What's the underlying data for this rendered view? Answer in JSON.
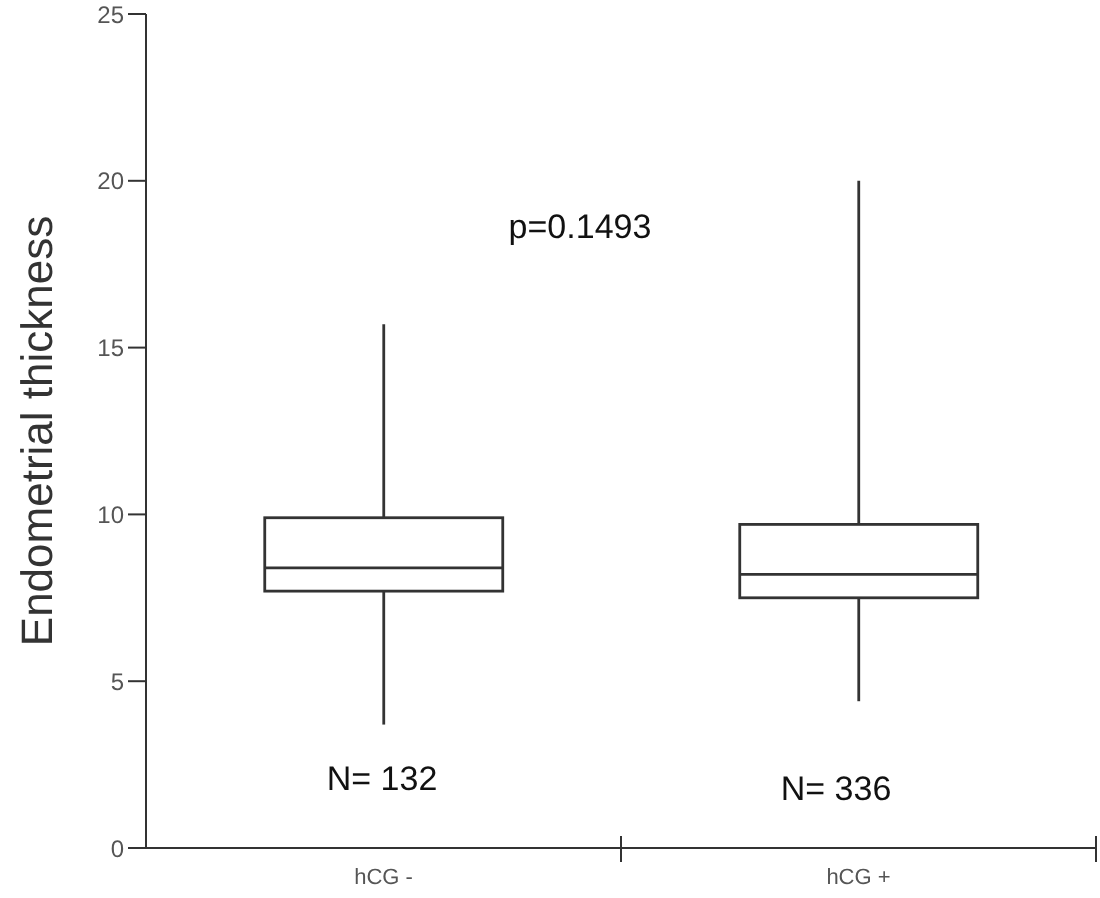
{
  "chart_data": {
    "type": "box",
    "categories": [
      "hCG -",
      "hCG +"
    ],
    "ylabel": "Endometrial thickness",
    "ylim": [
      0,
      25
    ],
    "yticks": [
      0,
      5,
      10,
      15,
      20,
      25
    ],
    "color": "#333333",
    "boxes": [
      {
        "low": 3.7,
        "q1": 7.7,
        "median": 8.4,
        "q3": 9.9,
        "high": 15.7
      },
      {
        "low": 4.4,
        "q1": 7.5,
        "median": 8.2,
        "q3": 9.7,
        "high": 20.0
      }
    ],
    "annotations": [
      "p=0.1493",
      "N= 132",
      "N= 336"
    ]
  }
}
